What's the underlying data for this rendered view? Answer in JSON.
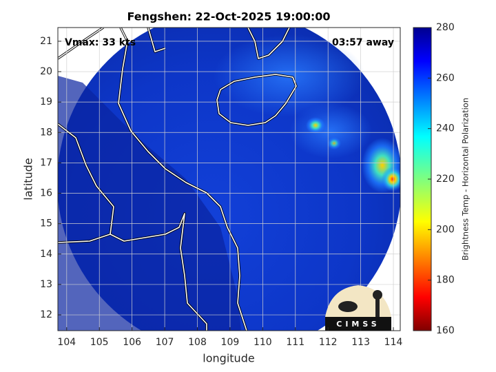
{
  "chart_data": {
    "type": "image",
    "title": "Fengshen: 22-Oct-2025 19:00:00",
    "annotations": [
      "Vmax: 33 kts",
      "03:57 away"
    ],
    "xlabel": "longitude",
    "ylabel": "latitude",
    "xlim": [
      103.73,
      114.21
    ],
    "ylim": [
      11.48,
      21.45
    ],
    "xticks": [
      104,
      105,
      106,
      107,
      108,
      109,
      110,
      111,
      112,
      113,
      114
    ],
    "yticks": [
      12,
      13,
      14,
      15,
      16,
      17,
      18,
      19,
      20,
      21
    ],
    "grid": true,
    "colorbar": {
      "label": "Brightness Temp - Horizontal Polarization",
      "colormap": "jet",
      "lim": [
        160,
        280
      ],
      "ticks": [
        160,
        180,
        200,
        220,
        240,
        260,
        280
      ]
    },
    "logo": "CIMSS"
  }
}
